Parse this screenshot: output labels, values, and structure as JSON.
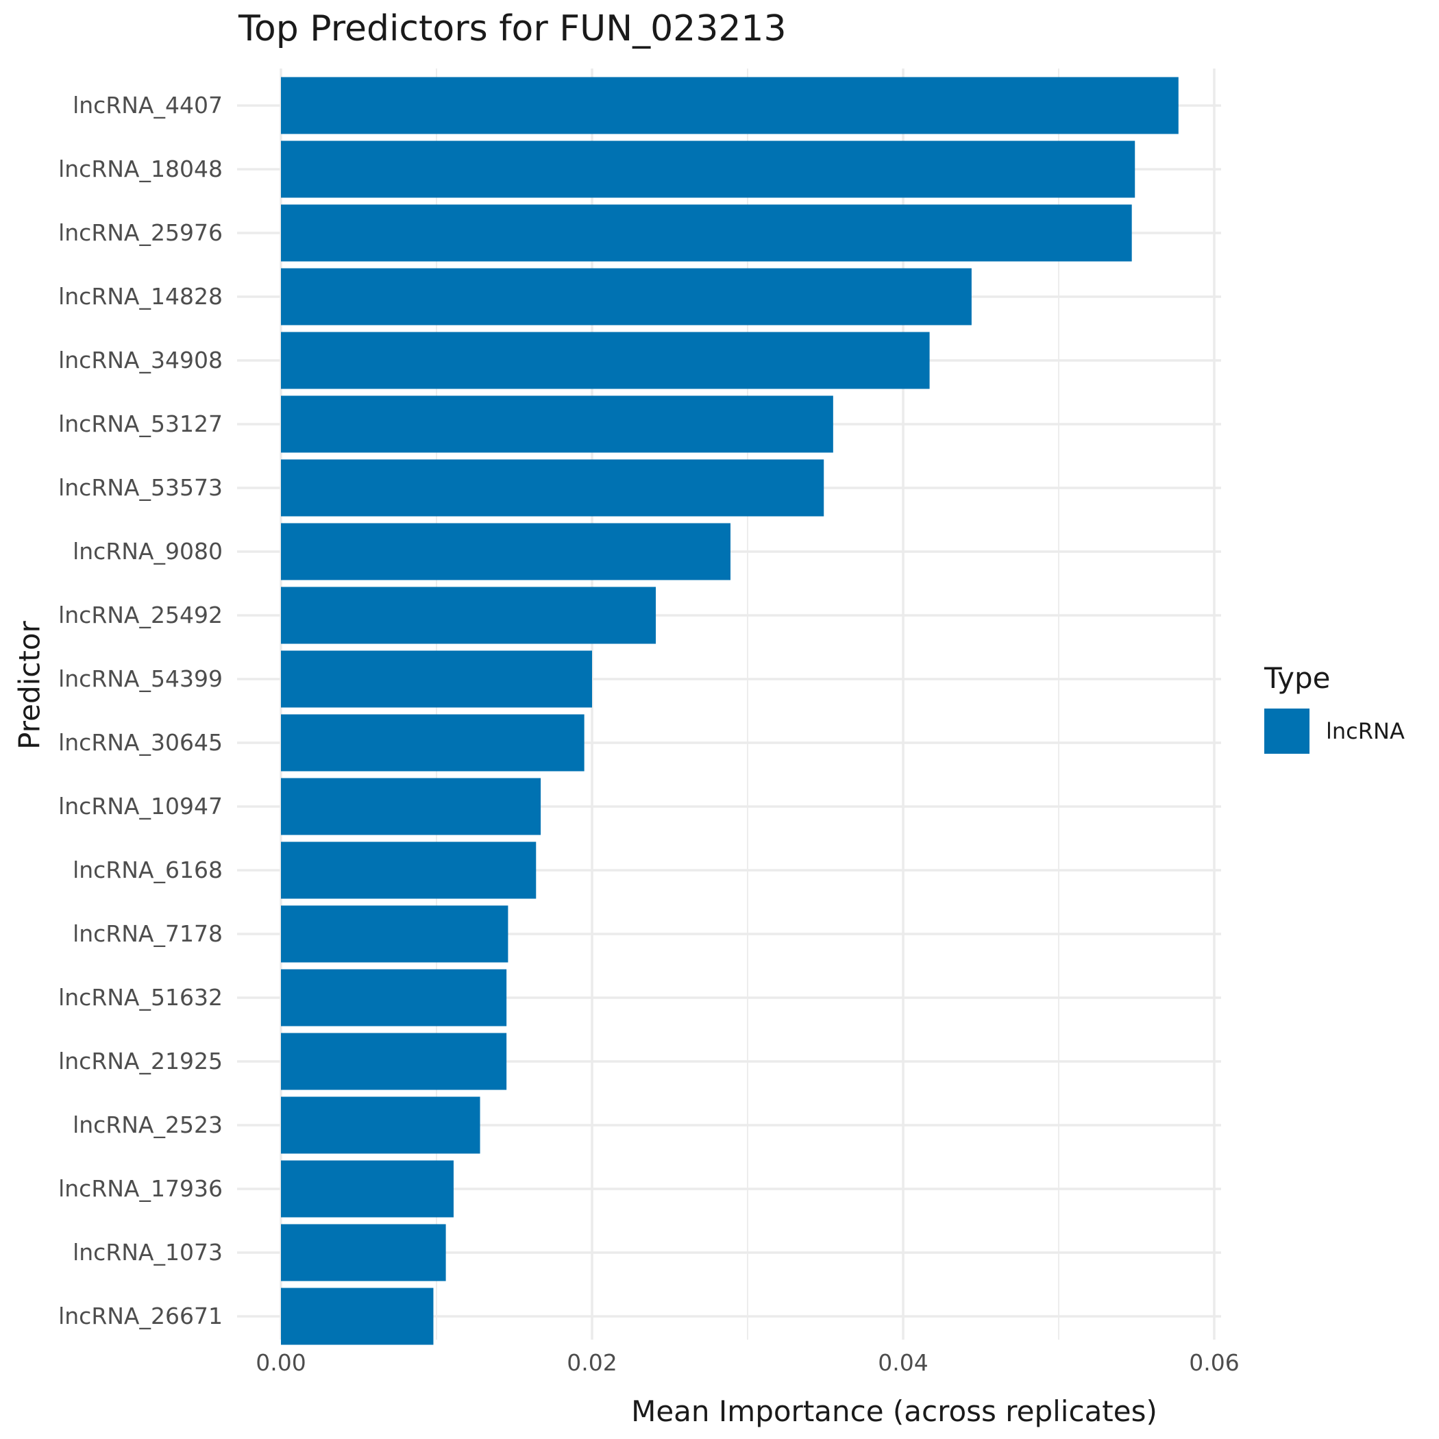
{
  "chart_data": {
    "type": "bar",
    "orientation": "horizontal",
    "title": "Top Predictors for FUN_023213",
    "xlabel": "Mean Importance (across replicates)",
    "ylabel": "Predictor",
    "xlim": [
      0,
      0.062
    ],
    "x_ticks": [
      "0.00",
      "0.02",
      "0.04",
      "0.06"
    ],
    "grid": true,
    "legend": {
      "title": "Type",
      "position": "right",
      "entries": [
        {
          "label": "lncRNA",
          "color": "#0072b2"
        }
      ]
    },
    "categories": [
      "lncRNA_4407",
      "lncRNA_18048",
      "lncRNA_25976",
      "lncRNA_14828",
      "lncRNA_34908",
      "lncRNA_53127",
      "lncRNA_53573",
      "lncRNA_9080",
      "lncRNA_25492",
      "lncRNA_54399",
      "lncRNA_30645",
      "lncRNA_10947",
      "lncRNA_6168",
      "lncRNA_7178",
      "lncRNA_51632",
      "lncRNA_21925",
      "lncRNA_2523",
      "lncRNA_17936",
      "lncRNA_1073",
      "lncRNA_26671"
    ],
    "series": [
      {
        "name": "lncRNA",
        "color": "#0072b2",
        "values": [
          0.0577,
          0.0549,
          0.0547,
          0.0444,
          0.0417,
          0.0355,
          0.0349,
          0.0289,
          0.0241,
          0.02,
          0.0195,
          0.0167,
          0.0164,
          0.0146,
          0.0145,
          0.0145,
          0.0128,
          0.0111,
          0.0106,
          0.0098
        ]
      }
    ]
  }
}
